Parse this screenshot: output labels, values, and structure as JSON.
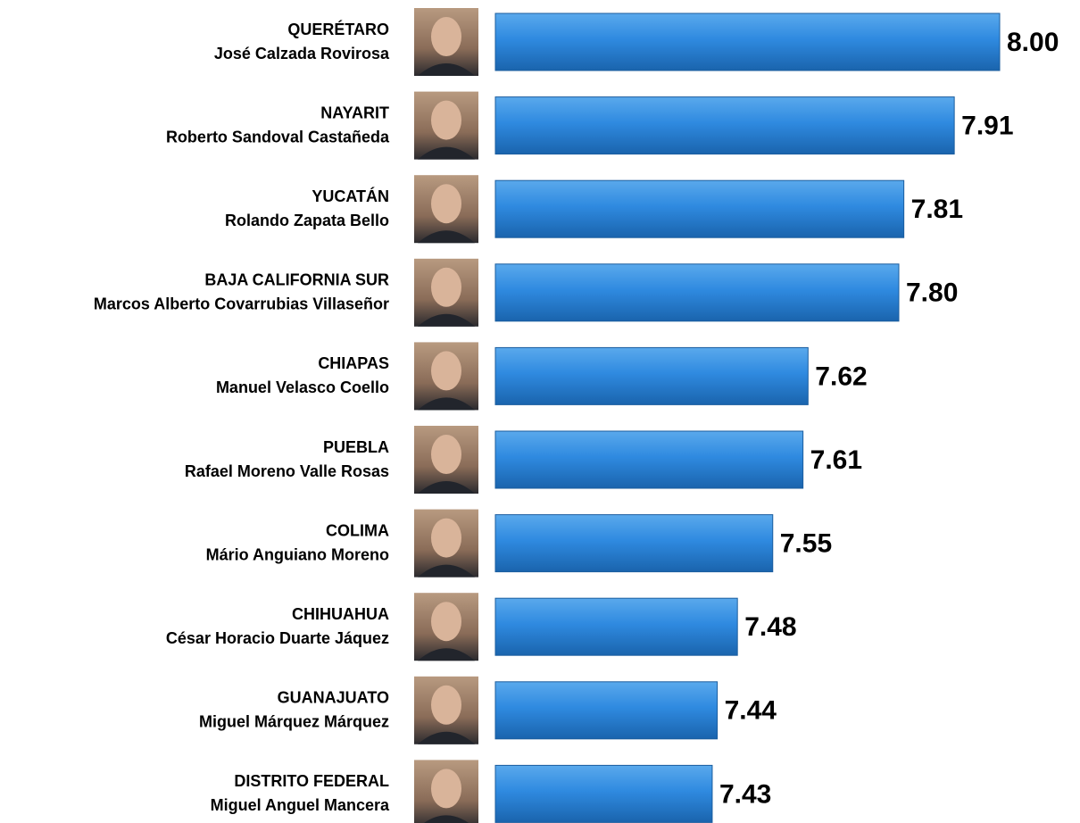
{
  "chart_data": {
    "type": "bar",
    "orientation": "horizontal",
    "color": "#2a84d6",
    "categories": [
      [
        "QUERÉTARO",
        "José Calzada Rovirosa"
      ],
      [
        "NAYARIT",
        "Roberto Sandoval Castañeda"
      ],
      [
        "YUCATÁN",
        "Rolando Zapata Bello"
      ],
      [
        "BAJA CALIFORNIA SUR",
        "Marcos Alberto Covarrubias Villaseñor"
      ],
      [
        "CHIAPAS",
        "Manuel Velasco Coello"
      ],
      [
        "PUEBLA",
        "Rafael Moreno Valle Rosas"
      ],
      [
        "COLIMA",
        "Mário Anguiano Moreno"
      ],
      [
        "CHIHUAHUA",
        "César Horacio Duarte Jáquez"
      ],
      [
        "GUANAJUATO",
        "Miguel Márquez Márquez"
      ],
      [
        "DISTRITO FEDERAL",
        "Miguel Anguel Mancera"
      ]
    ],
    "values": [
      8.0,
      7.91,
      7.81,
      7.8,
      7.62,
      7.61,
      7.55,
      7.48,
      7.44,
      7.43
    ],
    "value_labels": [
      "8.00",
      "7.91",
      "7.81",
      "7.80",
      "7.62",
      "7.61",
      "7.55",
      "7.48",
      "7.44",
      "7.43"
    ],
    "xlim": [
      7,
      8
    ]
  }
}
